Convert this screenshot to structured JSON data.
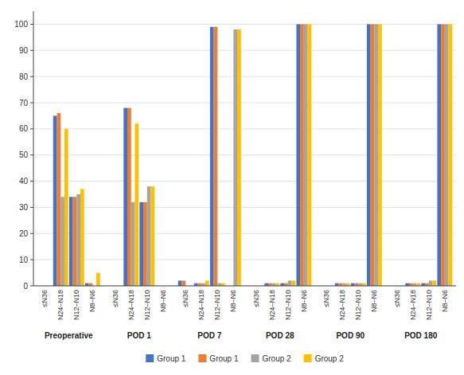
{
  "chart_data": {
    "type": "bar",
    "categories": [
      "≤N36",
      "N24–N18",
      "N12–N10",
      "N8–N6",
      "≤N36",
      "N24–N18",
      "N12–N10",
      "N8–N6",
      "≤N36",
      "N24–N18",
      "N12–N10",
      "N8–N6",
      "≤N36",
      "N24–N18",
      "N12–N10",
      "N8–N6",
      "≤N36",
      "N24–N18",
      "N12–N10",
      "N8–N6",
      "≤N36",
      "N24–N18",
      "N12–N10",
      "N8–N6"
    ],
    "category_groups": [
      "Preoperative",
      "POD 1",
      "POD 7",
      "POD 28",
      "POD 90",
      "POD 180"
    ],
    "series": [
      {
        "name": "Group 1",
        "color": "#4472C4",
        "values": [
          0,
          65,
          34,
          1,
          0,
          68,
          32,
          0,
          2,
          1,
          99,
          0,
          0,
          1,
          1,
          100,
          0,
          1,
          1,
          100,
          0,
          1,
          1,
          100
        ]
      },
      {
        "name": "Group 1",
        "color": "#ED7D31",
        "values": [
          0,
          66,
          34,
          1,
          0,
          68,
          32,
          0,
          2,
          1,
          99,
          0,
          0,
          1,
          1,
          100,
          0,
          1,
          1,
          100,
          0,
          1,
          1,
          100
        ]
      },
      {
        "name": "Group 2",
        "color": "#A5A5A5",
        "values": [
          0,
          34,
          35,
          0,
          0,
          32,
          38,
          0,
          0,
          1,
          1,
          98,
          0,
          1,
          2,
          100,
          0,
          1,
          1,
          100,
          0,
          1,
          2,
          100
        ]
      },
      {
        "name": "Group 2",
        "color": "#FFC000",
        "values": [
          0,
          60,
          37,
          5,
          0,
          62,
          38,
          0,
          0,
          2,
          1,
          98,
          0,
          1,
          2,
          100,
          0,
          1,
          1,
          100,
          0,
          1,
          2,
          100
        ]
      }
    ],
    "ylim": [
      0,
      105
    ],
    "yticks": [
      0,
      10,
      20,
      30,
      40,
      50,
      60,
      70,
      80,
      90,
      100
    ],
    "grid": true,
    "legend": "bottom"
  }
}
